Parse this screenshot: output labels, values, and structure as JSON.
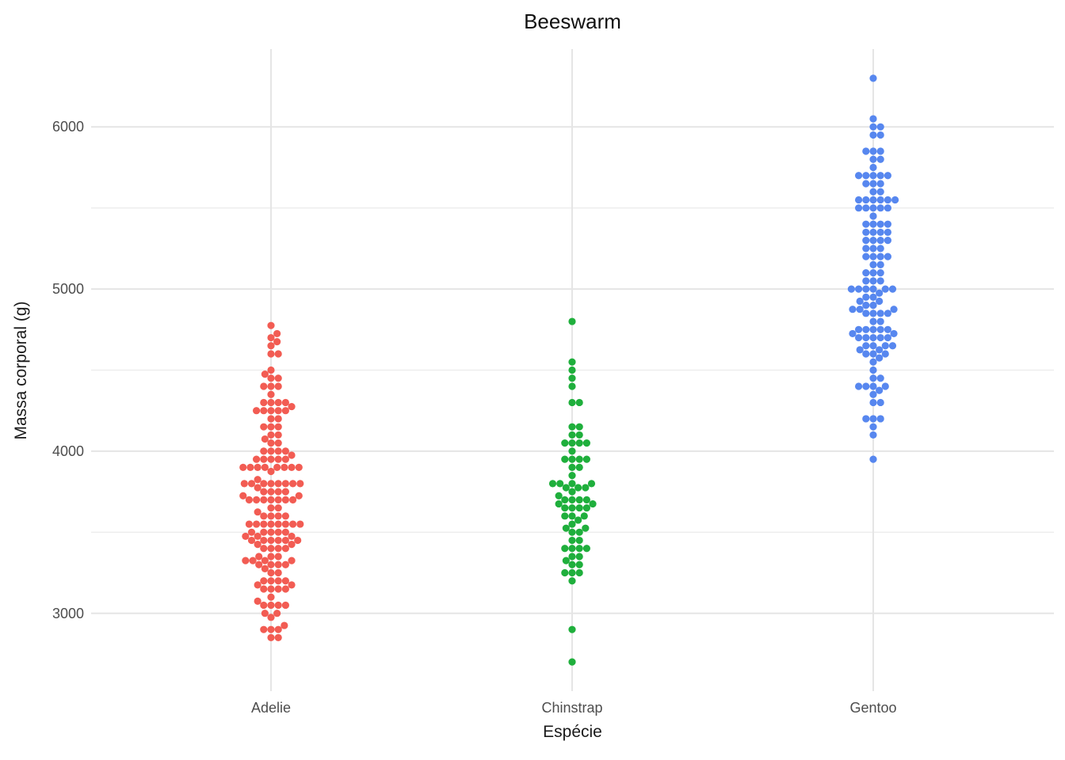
{
  "chart_data": {
    "type": "scatter",
    "variant": "beeswarm",
    "title": "Beeswarm",
    "xlabel": "Espécie",
    "ylabel": "Massa corporal (g)",
    "categories": [
      "Adelie",
      "Chinstrap",
      "Gentoo"
    ],
    "y_ticks": [
      3000,
      4000,
      5000,
      6000
    ],
    "y_minor": [
      3500,
      4500,
      5500
    ],
    "ylim": [
      2520,
      6480
    ],
    "grid": {
      "major_color": "#E5E5E5",
      "minor_color": "#ECECEC",
      "background": "#FFFFFF"
    },
    "legend": "none",
    "series": [
      {
        "name": "Adelie",
        "color": "#F25C53",
        "values": [
          3750,
          3800,
          3250,
          3450,
          3650,
          3625,
          4675,
          3475,
          4250,
          3300,
          3700,
          3200,
          3800,
          4400,
          3700,
          3450,
          4500,
          3325,
          4200,
          3400,
          3600,
          3800,
          3950,
          3800,
          3800,
          3550,
          3200,
          3150,
          3950,
          3250,
          3900,
          3300,
          3900,
          3325,
          4150,
          3950,
          3550,
          3300,
          4650,
          3150,
          3900,
          3100,
          4400,
          3000,
          4600,
          3425,
          2975,
          3450,
          4150,
          3500,
          4300,
          3450,
          4050,
          2900,
          3700,
          3550,
          3800,
          2850,
          3750,
          3150,
          4400,
          3600,
          4050,
          2850,
          3950,
          3350,
          4100,
          3050,
          4450,
          3600,
          3900,
          3550,
          4150,
          3700,
          4250,
          3700,
          3900,
          3550,
          4000,
          3200,
          4700,
          3800,
          4200,
          3350,
          3550,
          3800,
          3500,
          3950,
          3600,
          3550,
          4300,
          3400,
          4450,
          3300,
          4300,
          3700,
          4350,
          2900,
          4100,
          3725,
          4725,
          3075,
          4250,
          2925,
          3550,
          3750,
          3900,
          3175,
          4775,
          3825,
          4600,
          3200,
          4275,
          3900,
          4075,
          2900,
          3775,
          3350,
          3325,
          3150,
          3500,
          3450,
          3875,
          3050,
          4000,
          3275,
          4300,
          3050,
          4000,
          3325,
          3500,
          3500,
          4475,
          3425,
          3900,
          3175,
          3975,
          3400,
          4250,
          3400,
          3475,
          3050,
          3725,
          3000,
          3650,
          4250,
          3475,
          3450,
          3750,
          3700,
          4000
        ]
      },
      {
        "name": "Chinstrap",
        "color": "#1FAF3C",
        "values": [
          3500,
          3900,
          3650,
          3525,
          3725,
          3950,
          3250,
          3750,
          4150,
          3700,
          3800,
          3775,
          3700,
          4050,
          3575,
          4050,
          3300,
          3700,
          3450,
          4400,
          3600,
          3400,
          2900,
          3800,
          3300,
          4150,
          3400,
          3800,
          3700,
          4550,
          3200,
          4300,
          3350,
          4100,
          3600,
          3900,
          3850,
          4800,
          2700,
          4500,
          3950,
          3650,
          3550,
          3500,
          3675,
          4450,
          3400,
          4300,
          3250,
          3675,
          3325,
          3950,
          3600,
          4050,
          3350,
          3450,
          3250,
          4050,
          3800,
          3525,
          3950,
          3650,
          3650,
          4000,
          3400,
          3775,
          4100,
          3775
        ]
      },
      {
        "name": "Gentoo",
        "color": "#5787EF",
        "values": [
          4500,
          5700,
          4450,
          5700,
          5400,
          4550,
          4800,
          5200,
          4400,
          5150,
          4650,
          5550,
          4650,
          5850,
          4200,
          5850,
          4150,
          6300,
          4800,
          5350,
          5700,
          5000,
          4400,
          5050,
          5000,
          5100,
          4100,
          5650,
          4600,
          5550,
          5250,
          4700,
          5050,
          6050,
          5150,
          5400,
          4950,
          5250,
          4350,
          5350,
          3950,
          5700,
          4300,
          4750,
          5550,
          4900,
          4200,
          5400,
          5100,
          5300,
          4850,
          5300,
          4400,
          5000,
          4900,
          5050,
          4300,
          5000,
          4450,
          5550,
          4200,
          5300,
          4400,
          5650,
          4700,
          5700,
          4650,
          5800,
          4700,
          5550,
          4750,
          5000,
          5100,
          5200,
          4700,
          5800,
          4600,
          6000,
          4750,
          5950,
          4625,
          5450,
          4725,
          5350,
          4750,
          5600,
          4600,
          5300,
          4875,
          5550,
          4950,
          5400,
          4750,
          5650,
          4850,
          5200,
          4925,
          4875,
          4625,
          5250,
          4850,
          5600,
          4975,
          5500,
          4725,
          5500,
          4700,
          5500,
          4575,
          5500,
          5000,
          5950,
          4650,
          5500,
          4375,
          5850,
          4875,
          6000,
          4925,
          4850,
          5750,
          5200,
          5350
        ]
      }
    ]
  }
}
